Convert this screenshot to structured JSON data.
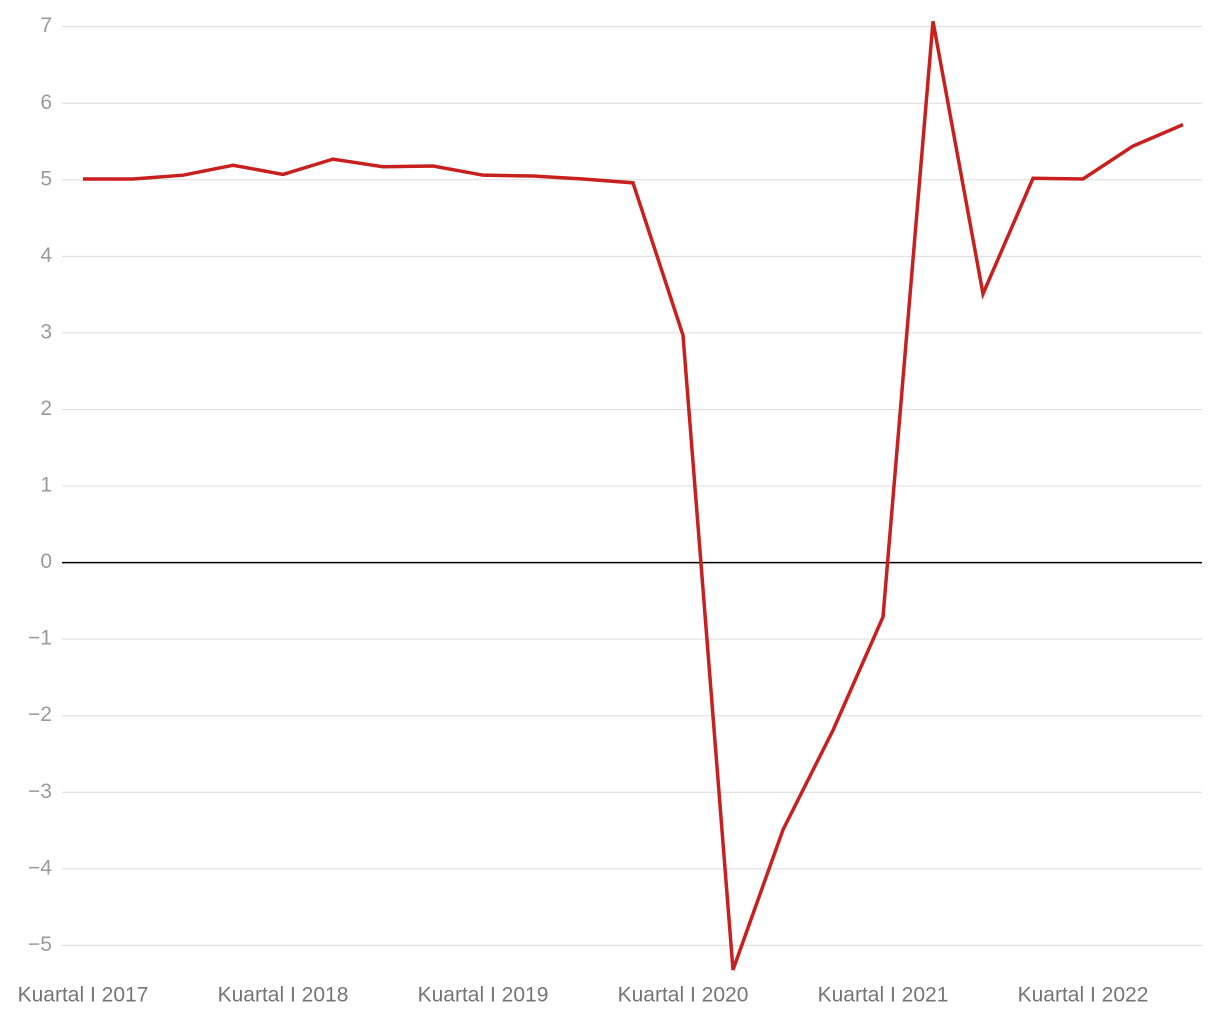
{
  "chart_data": {
    "type": "line",
    "categories": [
      "Kuartal I 2017",
      null,
      null,
      null,
      "Kuartal I 2018",
      null,
      null,
      null,
      "Kuartal I 2019",
      null,
      null,
      null,
      "Kuartal I 2020",
      null,
      null,
      null,
      "Kuartal I 2021",
      null,
      null,
      null,
      "Kuartal I 2022",
      null,
      null
    ],
    "series": [
      {
        "color": "#c8201f",
        "values": [
          5.01,
          5.01,
          5.06,
          5.19,
          5.07,
          5.27,
          5.17,
          5.18,
          5.06,
          5.05,
          5.01,
          4.96,
          2.97,
          -5.32,
          -3.49,
          -2.19,
          -0.71,
          7.07,
          3.51,
          5.02,
          5.01,
          5.44,
          5.72
        ]
      }
    ],
    "ylim": [
      -5.4,
      7.1
    ],
    "yticks": [
      {
        "value": -5,
        "label": "−5"
      },
      {
        "value": -4,
        "label": "−4"
      },
      {
        "value": -3,
        "label": "−3"
      },
      {
        "value": -2,
        "label": "−2"
      },
      {
        "value": -1,
        "label": "−1"
      },
      0,
      1,
      2,
      3,
      4,
      5,
      6,
      7
    ],
    "grid": true
  }
}
